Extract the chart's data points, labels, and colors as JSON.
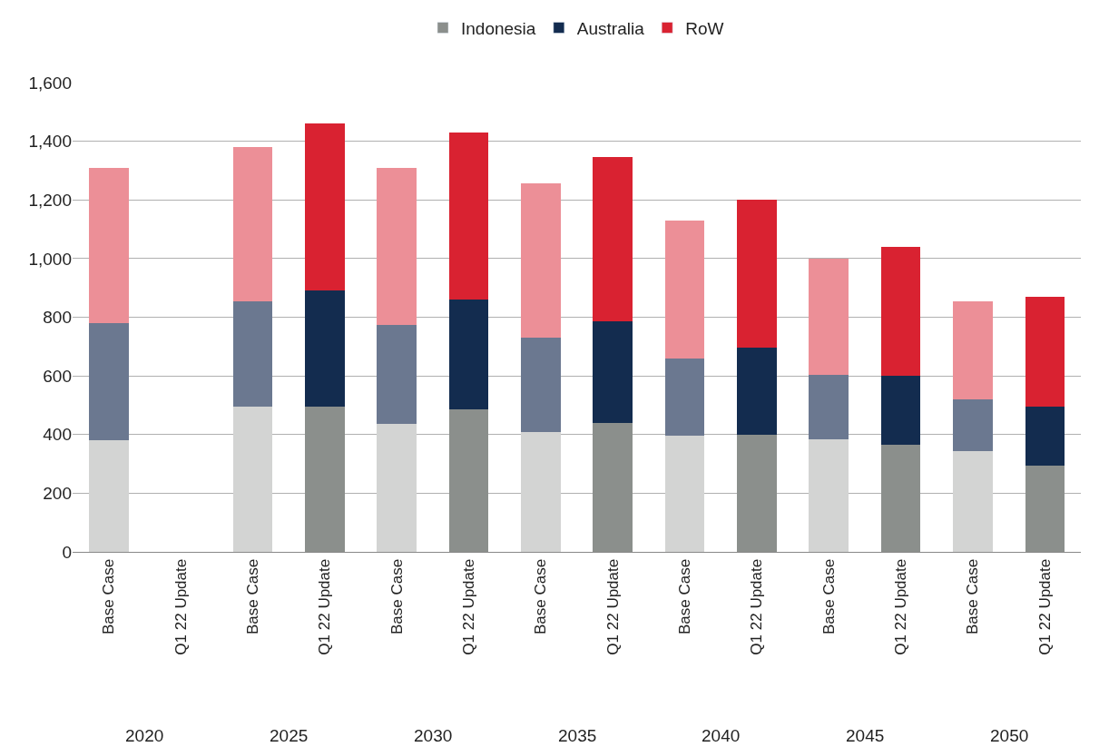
{
  "chart_data": {
    "type": "bar",
    "stacked": true,
    "categories": [
      "Base Case",
      "Q1 22 Update",
      "Base Case",
      "Q1 22 Update",
      "Base Case",
      "Q1 22 Update",
      "Base Case",
      "Q1 22 Update",
      "Base Case",
      "Q1 22 Update",
      "Base Case",
      "Q1 22 Update",
      "Base Case",
      "Q1 22 Update"
    ],
    "series": [
      {
        "name": "Indonesia",
        "color": "#8b8f8c",
        "colors": [
          "#d3d4d3",
          "#8b8f8c",
          "#d3d4d3",
          "#8b8f8c",
          "#d3d4d3",
          "#8b8f8c",
          "#d3d4d3",
          "#8b8f8c",
          "#d3d4d3",
          "#8b8f8c",
          "#d3d4d3",
          "#8b8f8c",
          "#d3d4d3",
          "#8b8f8c"
        ],
        "values": [
          380,
          null,
          495,
          495,
          435,
          485,
          410,
          440,
          395,
          400,
          385,
          365,
          345,
          295
        ]
      },
      {
        "name": "Australia",
        "color": "#132c4f",
        "colors": [
          "#6b7890",
          "#132c4f",
          "#6b7890",
          "#132c4f",
          "#6b7890",
          "#132c4f",
          "#6b7890",
          "#132c4f",
          "#6b7890",
          "#132c4f",
          "#6b7890",
          "#132c4f",
          "#6b7890",
          "#132c4f"
        ],
        "values": [
          400,
          null,
          360,
          395,
          340,
          375,
          320,
          345,
          265,
          295,
          220,
          235,
          175,
          200
        ]
      },
      {
        "name": "RoW",
        "color": "#d92231",
        "colors": [
          "#ec8f97",
          "#d92231",
          "#ec8f97",
          "#d92231",
          "#ec8f97",
          "#d92231",
          "#ec8f97",
          "#d92231",
          "#ec8f97",
          "#d92231",
          "#ec8f97",
          "#d92231",
          "#ec8f97",
          "#d92231"
        ],
        "values": [
          530,
          null,
          525,
          570,
          535,
          570,
          525,
          560,
          470,
          505,
          395,
          440,
          335,
          375
        ]
      }
    ],
    "ylim": [
      0,
      1600
    ],
    "yticks": [
      0,
      200,
      400,
      600,
      800,
      {
        "value": 1000,
        "label": "1,000"
      },
      {
        "value": 1200,
        "label": "1,200"
      },
      {
        "value": 1400,
        "label": "1,400"
      },
      {
        "value": 1600,
        "label": "1,600"
      }
    ],
    "grid": "y",
    "legend": "top",
    "annotations": [
      "2020",
      "2025",
      "2030",
      "2035",
      "2040",
      "2045",
      "2050"
    ]
  }
}
